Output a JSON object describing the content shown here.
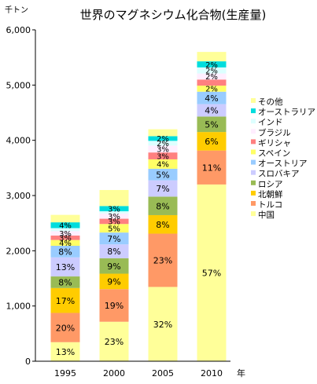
{
  "chart_data": {
    "type": "bar",
    "stacked": true,
    "title": "世界のマグネシウム化合物(生産量)",
    "ylabel": "千トン",
    "xlabel": "年",
    "ylim": [
      0,
      6000
    ],
    "yticks": [
      0,
      1000,
      2000,
      3000,
      4000,
      5000,
      6000
    ],
    "ytick_labels": [
      "0",
      "1,000",
      "2,000",
      "3,000",
      "4,000",
      "5,000",
      "6,000"
    ],
    "grid": false,
    "legend_position": "right",
    "categories": [
      "1995",
      "2000",
      "2005",
      "2010"
    ],
    "totals": [
      2650,
      3100,
      4200,
      5600
    ],
    "series": [
      {
        "name": "中国",
        "color": "#ffff99",
        "values": [
          345,
          715,
          1345,
          3200
        ],
        "labels": [
          "13%",
          "23%",
          "32%",
          "57%"
        ]
      },
      {
        "name": "トルコ",
        "color": "#ff9966",
        "values": [
          530,
          590,
          965,
          615
        ],
        "labels": [
          "20%",
          "19%",
          "23%",
          "11%"
        ]
      },
      {
        "name": "北朝鮮",
        "color": "#ffcc00",
        "values": [
          450,
          280,
          335,
          335
        ],
        "labels": [
          "17%",
          "9%",
          "8%",
          "6%"
        ]
      },
      {
        "name": "ロシア",
        "color": "#99bb55",
        "values": [
          210,
          280,
          335,
          280
        ],
        "labels": [
          "8%",
          "9%",
          "8%",
          "5%"
        ]
      },
      {
        "name": "スロバキア",
        "color": "#ccccff",
        "values": [
          345,
          250,
          295,
          225
        ],
        "labels": [
          "13%",
          "8%",
          "7%",
          "4%"
        ]
      },
      {
        "name": "オーストリア",
        "color": "#99ccff",
        "values": [
          210,
          215,
          210,
          225
        ],
        "labels": [
          "8%",
          "7%",
          "5%",
          "4%"
        ]
      },
      {
        "name": "スペイン",
        "color": "#ffff66",
        "values": [
          105,
          155,
          170,
          110
        ],
        "labels": [
          "4%",
          "5%",
          "4%",
          "2%"
        ]
      },
      {
        "name": "ギリシャ",
        "color": "#ff8080",
        "values": [
          80,
          95,
          125,
          110
        ],
        "labels": [
          "3%",
          "3%",
          "3%",
          ""
        ]
      },
      {
        "name": "ブラジル",
        "color": "#ffeeff",
        "values": [
          80,
          95,
          125,
          110
        ],
        "labels": [
          "3%",
          "3%",
          "3%",
          "2%"
        ]
      },
      {
        "name": "インド",
        "color": "#ddffff",
        "values": [
          55,
          40,
          85,
          110
        ],
        "labels": [
          "",
          "",
          "2%",
          "2%"
        ]
      },
      {
        "name": "オーストラリア",
        "color": "#00dddd",
        "values": [
          105,
          95,
          85,
          110
        ],
        "labels": [
          "4%",
          "3%",
          "2%",
          "2%"
        ]
      },
      {
        "name": "その他",
        "color": "#ffff99",
        "values": [
          135,
          290,
          125,
          170
        ],
        "labels": [
          "",
          "",
          "",
          ""
        ]
      }
    ]
  }
}
